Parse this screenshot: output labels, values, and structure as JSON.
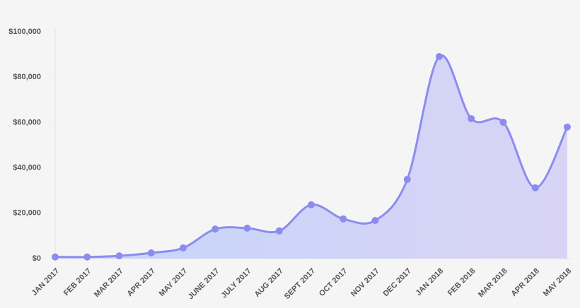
{
  "chart_data": {
    "type": "line",
    "area": true,
    "categories": [
      "JAN 2017",
      "FEB 2017",
      "MAR 2017",
      "APR 2017",
      "MAY 2017",
      "JUNE 2017",
      "JULY 2017",
      "AUG 2017",
      "SEPT 2017",
      "OCT 2017",
      "NOV 2017",
      "DEC 2017",
      "JAN 2018",
      "FEB 2018",
      "MAR 2018",
      "APR 2018",
      "MAY 2018"
    ],
    "values": [
      700,
      700,
      1200,
      2500,
      4700,
      13000,
      13400,
      12200,
      23700,
      17500,
      16800,
      34900,
      89100,
      61700,
      60100,
      31200,
      58000
    ],
    "color": "#8c8cf0",
    "ylim": [
      0,
      100000
    ],
    "yticks": [
      {
        "value": 0,
        "label": "$0"
      },
      {
        "value": 20000,
        "label": "$20,000"
      },
      {
        "value": 40000,
        "label": "$40,000"
      },
      {
        "value": 60000,
        "label": "$60,000"
      },
      {
        "value": 80000,
        "label": "$80,000"
      },
      {
        "value": 100000,
        "label": "$100,000"
      }
    ]
  }
}
